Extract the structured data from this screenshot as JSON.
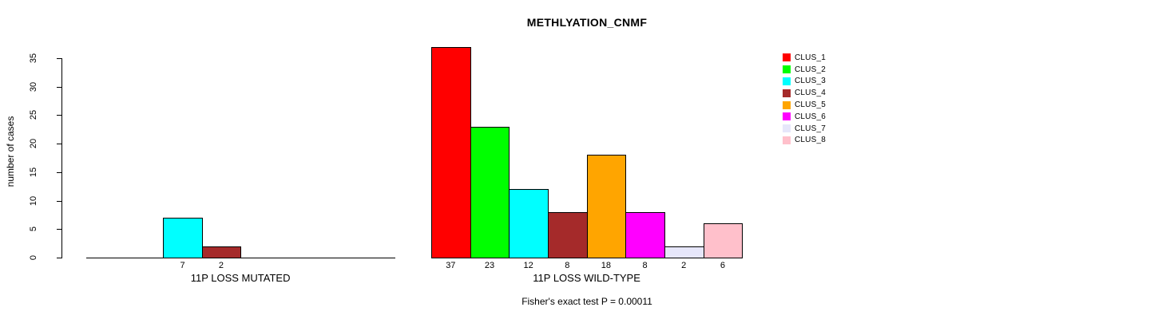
{
  "page": {
    "background": "#FFFFFF",
    "axis_color": "#000000",
    "text_color": "#000000"
  },
  "chart_data": {
    "type": "bar",
    "title": "METHLYATION_CNMF",
    "ylabel": "number of cases",
    "xlabel": "",
    "ylim": [
      0,
      35
    ],
    "yticks": [
      0,
      5,
      10,
      15,
      20,
      25,
      30,
      35
    ],
    "grid": false,
    "legend_position": "right",
    "legend": [
      "CLUS_1",
      "CLUS_2",
      "CLUS_3",
      "CLUS_4",
      "CLUS_5",
      "CLUS_6",
      "CLUS_7",
      "CLUS_8"
    ],
    "series_colors": [
      "#FF0000",
      "#00FF00",
      "#00FFFF",
      "#A52A2A",
      "#FFA500",
      "#FF00FF",
      "#E6E6FA",
      "#FFC0CB"
    ],
    "groups": [
      {
        "label": "11P LOSS MUTATED",
        "values": [
          0,
          0,
          7,
          2,
          0,
          0,
          0,
          0
        ]
      },
      {
        "label": "11P LOSS WILD-TYPE",
        "values": [
          37,
          23,
          12,
          8,
          18,
          8,
          2,
          6
        ]
      }
    ],
    "annotation": "Fisher's exact test P = 0.00011"
  }
}
